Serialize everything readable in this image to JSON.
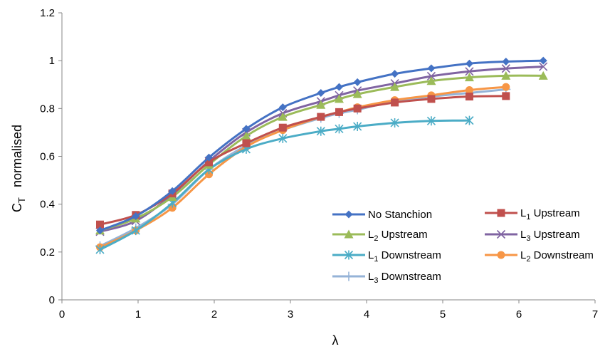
{
  "chart_data": {
    "type": "line",
    "xlabel": "λ",
    "ylabel_main": "C",
    "ylabel_sub": "T",
    "ylabel_rest": "normalised",
    "xlim": [
      0,
      7
    ],
    "ylim": [
      0,
      1.2
    ],
    "xticks": [
      "0",
      "1",
      "2",
      "3",
      "4",
      "5",
      "6",
      "7"
    ],
    "yticks": [
      "0",
      "0.2",
      "0.4",
      "0.6",
      "0.8",
      "1",
      "1.2"
    ],
    "grid": false,
    "legend_position": "bottom-right",
    "series": [
      {
        "name_parts": [
          "No Stanchion",
          "",
          ""
        ],
        "color": "#4472C4",
        "marker": "diamond",
        "x": [
          0.5,
          0.97,
          1.45,
          1.93,
          2.42,
          2.9,
          3.4,
          3.64,
          3.88,
          4.37,
          4.85,
          5.35,
          5.83,
          6.32
        ],
        "y": [
          0.29,
          0.35,
          0.455,
          0.595,
          0.715,
          0.805,
          0.865,
          0.89,
          0.91,
          0.945,
          0.968,
          0.988,
          0.996,
          1.0
        ]
      },
      {
        "name_parts": [
          "L",
          "1",
          " Upstream"
        ],
        "color": "#C0504D",
        "marker": "square",
        "x": [
          0.5,
          0.97,
          1.45,
          1.93,
          2.42,
          2.9,
          3.4,
          3.64,
          3.88,
          4.37,
          4.85,
          5.35,
          5.83
        ],
        "y": [
          0.315,
          0.355,
          0.445,
          0.575,
          0.655,
          0.72,
          0.765,
          0.785,
          0.8,
          0.825,
          0.84,
          0.85,
          0.852
        ]
      },
      {
        "name_parts": [
          "L",
          "2",
          " Upstream"
        ],
        "color": "#9BBB59",
        "marker": "triangle",
        "x": [
          0.5,
          0.97,
          1.45,
          1.93,
          2.42,
          2.9,
          3.4,
          3.64,
          3.88,
          4.37,
          4.85,
          5.35,
          5.83,
          6.32
        ],
        "y": [
          0.29,
          0.34,
          0.43,
          0.565,
          0.685,
          0.765,
          0.815,
          0.84,
          0.86,
          0.89,
          0.915,
          0.93,
          0.937,
          0.937
        ]
      },
      {
        "name_parts": [
          "L",
          "3",
          " Upstream"
        ],
        "color": "#8064A2",
        "marker": "x",
        "x": [
          0.5,
          0.97,
          1.45,
          1.93,
          2.42,
          2.9,
          3.4,
          3.64,
          3.88,
          4.37,
          4.85,
          5.35,
          5.83,
          6.32
        ],
        "y": [
          0.285,
          0.33,
          0.44,
          0.58,
          0.7,
          0.78,
          0.83,
          0.855,
          0.875,
          0.905,
          0.935,
          0.955,
          0.967,
          0.975
        ]
      },
      {
        "name_parts": [
          "L",
          "1",
          " Downstream"
        ],
        "color": "#4BACC6",
        "marker": "star",
        "x": [
          0.5,
          0.97,
          1.45,
          1.93,
          2.42,
          2.9,
          3.4,
          3.64,
          3.88,
          4.37,
          4.85,
          5.35
        ],
        "y": [
          0.21,
          0.29,
          0.405,
          0.545,
          0.63,
          0.675,
          0.705,
          0.715,
          0.725,
          0.74,
          0.748,
          0.75
        ]
      },
      {
        "name_parts": [
          "L",
          "2",
          " Downstream"
        ],
        "color": "#F79646",
        "marker": "circle",
        "x": [
          0.5,
          0.97,
          1.45,
          1.93,
          2.42,
          2.9,
          3.4,
          3.64,
          3.88,
          4.37,
          4.85,
          5.35,
          5.83
        ],
        "y": [
          0.22,
          0.29,
          0.385,
          0.525,
          0.64,
          0.71,
          0.765,
          0.785,
          0.805,
          0.835,
          0.855,
          0.877,
          0.89
        ]
      },
      {
        "name_parts": [
          "L",
          "3",
          " Downstream"
        ],
        "color": "#95B3D7",
        "marker": "plus",
        "x": [
          0.5,
          0.97,
          1.45,
          1.93,
          2.42,
          2.9,
          3.4,
          3.64,
          3.88,
          4.37,
          4.85,
          5.35,
          5.83
        ],
        "y": [
          0.225,
          0.3,
          0.4,
          0.545,
          0.645,
          0.71,
          0.76,
          0.78,
          0.795,
          0.83,
          0.85,
          0.865,
          0.88
        ]
      }
    ]
  }
}
